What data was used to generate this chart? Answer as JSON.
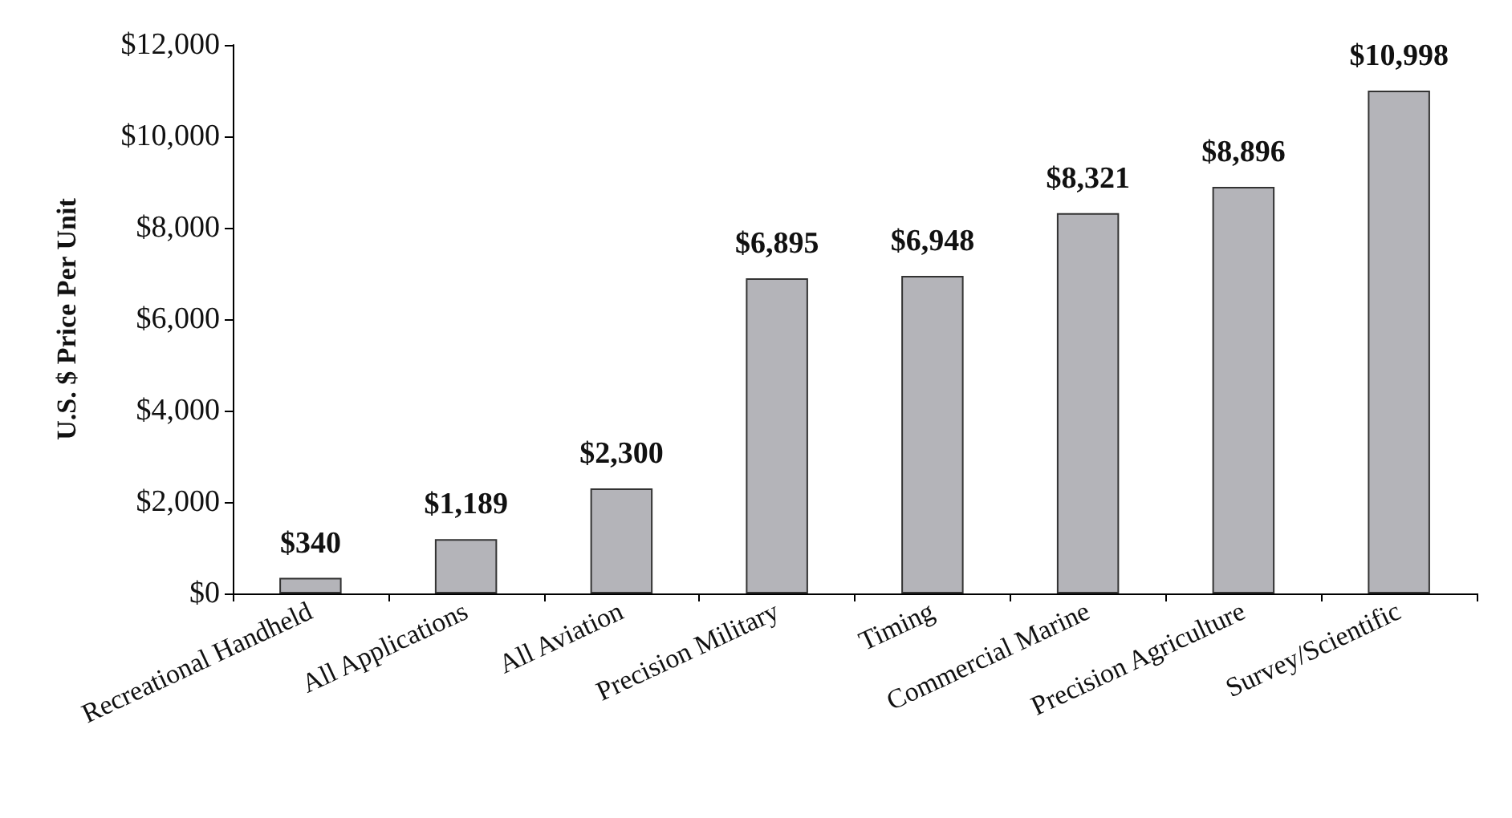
{
  "chart_data": {
    "type": "bar",
    "ylabel": "U.S. $ Price Per Unit",
    "categories": [
      "Recreational Handheld",
      "All Applications",
      "All Aviation",
      "Precision Military",
      "Timing",
      "Commercial Marine",
      "Precision Agriculture",
      "Survey/Scientific"
    ],
    "values": [
      340,
      1189,
      2300,
      6895,
      6948,
      8321,
      8896,
      10998
    ],
    "value_labels": [
      "$340",
      "$1,189",
      "$2,300",
      "$6,895",
      "$6,948",
      "$8,321",
      "$8,896",
      "$10,998"
    ],
    "color": "#b4b4b9",
    "ylim": [
      0,
      12000
    ],
    "yticks": [
      {
        "value": 0,
        "label": "$0"
      },
      {
        "value": 2000,
        "label": "$2,000"
      },
      {
        "value": 4000,
        "label": "$4,000"
      },
      {
        "value": 6000,
        "label": "$6,000"
      },
      {
        "value": 8000,
        "label": "$8,000"
      },
      {
        "value": 10000,
        "label": "$10,000"
      },
      {
        "value": 12000,
        "label": "$12,000"
      }
    ],
    "grid": false
  }
}
